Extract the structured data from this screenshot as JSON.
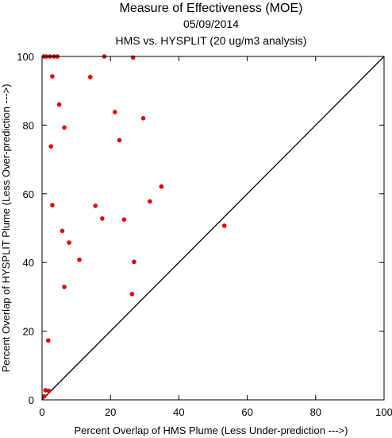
{
  "chart_data": {
    "type": "scatter",
    "title": "Measure of Effectiveness (MOE)",
    "subtitle_date": "05/09/2014",
    "subtitle_analysis": "HMS vs. HYSPLIT  (20 ug/m3 analysis)",
    "xlabel": "Percent Overlap of HMS Plume (Less Under-prediction --->)",
    "ylabel": "Percent Overlap of HYSPLIT Plume (Less Over-prediction --->)",
    "xlim": [
      0,
      100
    ],
    "ylim": [
      0,
      100
    ],
    "xticks": [
      0,
      20,
      40,
      60,
      80,
      100
    ],
    "yticks": [
      0,
      20,
      40,
      60,
      80,
      100
    ],
    "grid": false,
    "reference_line": "y = x",
    "point_color": "#e00000",
    "points": [
      {
        "x": 0.5,
        "y": 100
      },
      {
        "x": 1.2,
        "y": 100
      },
      {
        "x": 2.3,
        "y": 100
      },
      {
        "x": 3.5,
        "y": 100
      },
      {
        "x": 4.5,
        "y": 100
      },
      {
        "x": 18.2,
        "y": 100
      },
      {
        "x": 26.6,
        "y": 99.7
      },
      {
        "x": 3.0,
        "y": 94.2
      },
      {
        "x": 14.1,
        "y": 94.0
      },
      {
        "x": 5.0,
        "y": 86.0
      },
      {
        "x": 21.3,
        "y": 83.8
      },
      {
        "x": 29.6,
        "y": 82.0
      },
      {
        "x": 6.5,
        "y": 79.3
      },
      {
        "x": 22.6,
        "y": 75.6
      },
      {
        "x": 2.6,
        "y": 73.8
      },
      {
        "x": 34.9,
        "y": 62.1
      },
      {
        "x": 31.5,
        "y": 57.8
      },
      {
        "x": 3.0,
        "y": 56.7
      },
      {
        "x": 15.6,
        "y": 56.5
      },
      {
        "x": 17.6,
        "y": 52.8
      },
      {
        "x": 24.0,
        "y": 52.5
      },
      {
        "x": 53.3,
        "y": 50.7
      },
      {
        "x": 5.9,
        "y": 49.2
      },
      {
        "x": 7.9,
        "y": 45.8
      },
      {
        "x": 10.9,
        "y": 40.8
      },
      {
        "x": 26.9,
        "y": 40.2
      },
      {
        "x": 6.5,
        "y": 32.9
      },
      {
        "x": 26.3,
        "y": 30.8
      },
      {
        "x": 1.8,
        "y": 17.3
      },
      {
        "x": 1.0,
        "y": 2.8
      },
      {
        "x": 2.0,
        "y": 2.6
      },
      {
        "x": 0.6,
        "y": 1.0
      }
    ]
  }
}
